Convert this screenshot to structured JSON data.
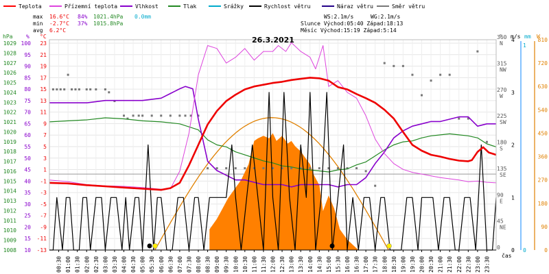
{
  "chart_data": {
    "type": "line",
    "title": "26.3.2021",
    "legend": [
      {
        "label": "Teplota",
        "color": "#ff0000"
      },
      {
        "label": "Přízemní teplota",
        "color": "#dd44dd"
      },
      {
        "label": "Vlhkost",
        "color": "#8800cc"
      },
      {
        "label": "Tlak",
        "color": "#228822"
      },
      {
        "label": "Srážky",
        "color": "#00aacc"
      },
      {
        "label": "Rychlost větru",
        "color": "#000000"
      },
      {
        "label": "Náraz větru",
        "color": "#220088"
      },
      {
        "label": "Směr větru",
        "color": "#777777"
      }
    ],
    "stats": {
      "max": {
        "label": "max",
        "temp": "16.6°C",
        "hum": "84%",
        "press": "1021.4hPa",
        "rain": "0.0mm"
      },
      "min": {
        "label": "min",
        "temp": "-2.7°C",
        "hum": "37%",
        "press": "1015.8hPa"
      },
      "avg": {
        "label": "avg",
        "temp": "6.2°C"
      }
    },
    "info": {
      "ws": "WS:2.1m/s",
      "wg": "WG:2.1m/s",
      "sun": "Slunce Východ:05:40  Západ:18:13",
      "moon": "Měsíc  Východ:15:19  Západ:5:14"
    },
    "axis_headers": {
      "hpa": "hPa",
      "pct": "%",
      "degc": "°C",
      "deg": "°",
      "ms": "m/s",
      "mm": "mm",
      "w": "W"
    },
    "xlabel": "čas",
    "x_ticks": [
      "00:30",
      "01:00",
      "01:30",
      "02:00",
      "02:30",
      "03:00",
      "03:30",
      "04:00",
      "04:30",
      "05:00",
      "05:30",
      "06:00",
      "06:30",
      "07:00",
      "07:30",
      "08:00",
      "08:30",
      "09:00",
      "09:30",
      "10:00",
      "10:30",
      "11:00",
      "11:30",
      "12:00",
      "12:30",
      "13:00",
      "13:30",
      "14:00",
      "14:30",
      "15:00",
      "15:30",
      "16:00",
      "16:30",
      "17:00",
      "17:30",
      "18:00",
      "18:30",
      "19:00",
      "19:30",
      "20:00",
      "20:30",
      "21:00",
      "21:30",
      "22:00",
      "22:30",
      "23:00",
      "23:30"
    ],
    "y_pressure_ticks": [
      "1029",
      "1028",
      "1027",
      "1026",
      "1025",
      "1024",
      "1023",
      "1022",
      "1021",
      "1020",
      "1019",
      "1018",
      "1017",
      "1016",
      "1015",
      "1014",
      "1013",
      "1012",
      "1011",
      "1010",
      "1009",
      "1008"
    ],
    "y_humidity_ticks": [
      "100",
      "95",
      "90",
      "85",
      "80",
      "75",
      "70",
      "65",
      "60",
      "55",
      "50",
      "45",
      "40",
      "35",
      "30",
      "25",
      "20",
      "15",
      "10"
    ],
    "y_temp_ticks": [
      "23",
      "21",
      "19",
      "17",
      "15",
      "13",
      "11",
      "9",
      "7",
      "5",
      "3",
      "1",
      "-1",
      "-3",
      "-5",
      "-7",
      "-9",
      "-11",
      "-13"
    ],
    "y_dir_ticks": [
      {
        "v": "360",
        "d": "N"
      },
      {
        "v": "315",
        "d": "NW"
      },
      {
        "v": "270",
        "d": "W"
      },
      {
        "v": "225",
        "d": "SW"
      },
      {
        "v": "180",
        "d": "S"
      },
      {
        "v": "135",
        "d": "SE"
      },
      {
        "v": "90",
        "d": "E"
      },
      {
        "v": "45",
        "d": "NE"
      },
      {
        "v": "0",
        "d": ""
      }
    ],
    "y_wind_ticks": [
      "4",
      "3",
      "2",
      "1",
      "0"
    ],
    "y_rain_ticks": [
      "1",
      "0"
    ],
    "y_solar_ticks": [
      "810",
      "720",
      "630",
      "540",
      "450",
      "360",
      "270",
      "180",
      "90",
      "0"
    ],
    "ranges": {
      "temp": [
        -13,
        23
      ],
      "humidity": [
        10,
        100
      ],
      "pressure": [
        1008,
        1029
      ],
      "direction": [
        0,
        360
      ],
      "wind": [
        0,
        4
      ],
      "solar": [
        0,
        810
      ],
      "hours": [
        0,
        24
      ]
    },
    "series": [
      {
        "name": "Teplota",
        "color": "#ee0000",
        "width": 2.6,
        "x": [
          0,
          1,
          2,
          3,
          4,
          5,
          5.5,
          6,
          6.5,
          7,
          7.5,
          8,
          8.5,
          9,
          9.5,
          10,
          10.5,
          11,
          11.5,
          12,
          12.5,
          13,
          13.5,
          14,
          14.5,
          15,
          15.5,
          16,
          16.5,
          17,
          17.5,
          18,
          18.5,
          19,
          19.5,
          20,
          20.5,
          21,
          21.5,
          22,
          22.5,
          22.7,
          23,
          23.3,
          23.6,
          24
        ],
        "y": [
          -1.5,
          -1.6,
          -1.9,
          -2.1,
          -2.3,
          -2.5,
          -2.6,
          -2.7,
          -2.4,
          -1.5,
          1.5,
          5,
          8.5,
          10.8,
          12.5,
          13.6,
          14.5,
          15,
          15.3,
          15.6,
          15.8,
          16.1,
          16.3,
          16.5,
          16.4,
          16,
          14.9,
          14.5,
          13.7,
          13,
          12.2,
          11,
          9.5,
          7.2,
          5,
          4,
          3.3,
          3,
          2.6,
          2.3,
          2.2,
          2.4,
          3.8,
          4.6,
          3.7,
          3.3
        ]
      },
      {
        "name": "Přízemní teplota",
        "color": "#dd44dd",
        "width": 1,
        "x": [
          0,
          1,
          2,
          3,
          4,
          5,
          6,
          6.5,
          7,
          7.5,
          8,
          8.5,
          9,
          9.5,
          10,
          10.5,
          11,
          11.5,
          12,
          12.3,
          12.7,
          13,
          13.5,
          14,
          14.3,
          14.7,
          15,
          15.5,
          16,
          16.5,
          17,
          17.5,
          18,
          18.5,
          19,
          19.5,
          20,
          20.5,
          21,
          21.5,
          22,
          22.5,
          23,
          23.5,
          24
        ],
        "y": [
          -1,
          -1.3,
          -1.8,
          -2,
          -2.1,
          -2.3,
          -2.6,
          -2.5,
          0.5,
          7,
          17,
          22,
          21.5,
          19,
          20,
          21.5,
          19.5,
          21,
          21,
          22,
          21,
          22.5,
          21,
          20,
          18,
          22,
          15,
          16,
          14,
          13,
          10,
          6,
          3.5,
          1.8,
          0.8,
          0.3,
          0,
          -0.3,
          -0.6,
          -0.8,
          -1,
          -1.3,
          -1.2,
          -1.4,
          -1.5
        ]
      },
      {
        "name": "Vlhkost",
        "color": "#8800cc",
        "width": 1.6,
        "x": [
          0,
          1,
          2,
          3,
          4,
          5,
          6,
          6.5,
          7,
          7.3,
          7.7,
          8,
          8.5,
          9,
          9.5,
          10,
          10.5,
          11,
          11.5,
          12,
          12.5,
          13,
          13.5,
          14,
          14.5,
          15,
          15.5,
          16,
          16.5,
          17,
          17.5,
          18,
          18.5,
          19,
          19.5,
          20,
          20.5,
          21,
          21.5,
          22,
          22.5,
          23,
          23.5,
          24
        ],
        "y": [
          73,
          73,
          73,
          74,
          74,
          74,
          75,
          77,
          79,
          80,
          79,
          66,
          48,
          44,
          42,
          40,
          40,
          39,
          38,
          38,
          38,
          37,
          38,
          38,
          38,
          38,
          37,
          38,
          38,
          41,
          47,
          52,
          58,
          61,
          63,
          64,
          65,
          65,
          66,
          67,
          67,
          63,
          64,
          64
        ]
      },
      {
        "name": "Tlak",
        "color": "#228822",
        "width": 1.2,
        "x": [
          0,
          1,
          2,
          3,
          4,
          5,
          6,
          7,
          8,
          8.5,
          9,
          9.5,
          10,
          10.5,
          11,
          11.5,
          12,
          12.5,
          13,
          13.5,
          14,
          14.5,
          15,
          15.5,
          16,
          16.5,
          17,
          17.5,
          18,
          18.5,
          19,
          19.5,
          20,
          20.5,
          21,
          21.5,
          22,
          22.5,
          23,
          23.5,
          24
        ],
        "y": [
          1020.8,
          1020.9,
          1021,
          1021.2,
          1021.1,
          1020.9,
          1020.8,
          1020.6,
          1020,
          1019,
          1018.5,
          1018.3,
          1017.8,
          1017.5,
          1017.2,
          1016.9,
          1016.7,
          1016.4,
          1016.3,
          1016.1,
          1016,
          1015.9,
          1015.8,
          1016,
          1016.1,
          1016.5,
          1016.8,
          1017.4,
          1018,
          1018.5,
          1018.8,
          1018.9,
          1019.2,
          1019.4,
          1019.5,
          1019.6,
          1019.5,
          1019.4,
          1019.2,
          1018.6,
          1018.3
        ]
      },
      {
        "name": "Rychlost větru",
        "color": "#000000",
        "width": 1.2,
        "x": [
          0,
          0.2,
          0.4,
          0.7,
          0.9,
          1.1,
          1.3,
          1.6,
          1.8,
          2,
          2.2,
          2.5,
          2.8,
          3,
          3.3,
          3.6,
          3.9,
          4.1,
          4.3,
          4.6,
          4.8,
          5,
          5.3,
          5.6,
          5.8,
          6,
          6.3,
          6.6,
          6.9,
          7.2,
          7.5,
          7.8,
          8,
          8.3,
          8.6,
          8.9,
          9.2,
          9.5,
          9.8,
          10,
          10.3,
          10.6,
          10.9,
          11.2,
          11.5,
          11.8,
          12,
          12.3,
          12.6,
          12.9,
          13.2,
          13.5,
          13.8,
          14,
          14.3,
          14.6,
          14.9,
          15.2,
          15.5,
          15.8,
          16,
          16.3,
          16.6,
          16.9,
          17.2,
          17.5,
          17.8,
          18,
          18.3,
          18.6,
          18.9,
          19.2,
          19.5,
          19.8,
          20,
          20.3,
          20.6,
          20.9,
          21.2,
          21.5,
          21.8,
          22,
          22.3,
          22.6,
          22.9,
          23.2,
          23.5,
          23.8,
          24
        ],
        "y": [
          0,
          0,
          1,
          0,
          1,
          1,
          0,
          0,
          1,
          1,
          0,
          1,
          1,
          0,
          1,
          1,
          0,
          1,
          0,
          1,
          1,
          0,
          2,
          0,
          1,
          1,
          0,
          0,
          1,
          1,
          0,
          1,
          1,
          0,
          1,
          1,
          1,
          1,
          2,
          1,
          0,
          1,
          2,
          1,
          0,
          3,
          1,
          0,
          3,
          1,
          0,
          2,
          1,
          3,
          0,
          1,
          3,
          0,
          1,
          2,
          0,
          1,
          0,
          1,
          1,
          0,
          1,
          1,
          0,
          0,
          0,
          1,
          1,
          0,
          1,
          1,
          1,
          0,
          1,
          1,
          0,
          0,
          1,
          1,
          0,
          2,
          0,
          0,
          1
        ]
      }
    ],
    "solar": {
      "color": "#ff8000",
      "x": [
        8.6,
        9,
        9.3,
        9.6,
        10,
        10.3,
        10.5,
        10.7,
        11,
        11.2,
        11.5,
        11.8,
        12,
        12.2,
        12.5,
        12.8,
        13,
        13.2,
        13.5,
        13.7,
        14,
        14.2,
        14.5,
        14.7,
        15,
        15.3,
        15.6,
        16,
        16.3,
        16.6
      ],
      "y": [
        80,
        120,
        160,
        200,
        240,
        270,
        300,
        330,
        420,
        430,
        440,
        430,
        450,
        420,
        440,
        410,
        420,
        400,
        380,
        360,
        330,
        290,
        250,
        150,
        210,
        160,
        80,
        40,
        20,
        0
      ]
    },
    "solar_theory": {
      "color": "#e08000",
      "sunrise": 5.67,
      "sunset": 18.22,
      "peak": 510
    },
    "wind_dir_points": {
      "color": "#777777",
      "x": [
        0.2,
        0.4,
        0.6,
        0.8,
        1,
        1.2,
        1.4,
        1.6,
        2,
        2.2,
        2.5,
        3,
        3.2,
        3.5,
        4,
        4.2,
        4.5,
        4.8,
        5,
        5.5,
        6,
        6.5,
        7,
        7.3,
        7.6,
        8,
        8.5,
        9,
        9.5,
        10,
        10.5,
        11,
        11.5,
        12,
        12.5,
        13,
        13.5,
        14,
        14.5,
        15,
        15.5,
        16,
        16.5,
        17,
        17.5,
        18,
        18.5,
        19,
        19.5,
        20,
        20.5,
        21,
        21.5,
        22,
        22.5,
        23,
        23.5
      ],
      "y": [
        275,
        275,
        275,
        275,
        300,
        275,
        275,
        275,
        275,
        275,
        275,
        275,
        270,
        255,
        230,
        225,
        230,
        230,
        230,
        230,
        230,
        230,
        230,
        230,
        230,
        230,
        140,
        140,
        140,
        140,
        140,
        140,
        140,
        140,
        140,
        140,
        140,
        140,
        140,
        140,
        140,
        140,
        140,
        135,
        110,
        320,
        315,
        315,
        300,
        265,
        290,
        300,
        300,
        225,
        225,
        340,
        185
      ]
    }
  }
}
